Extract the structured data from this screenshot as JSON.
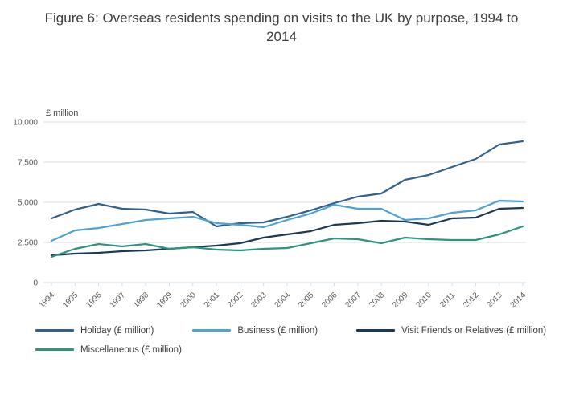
{
  "title": "Figure 6: Overseas residents spending on visits to the UK by purpose, 1994 to 2014",
  "chart_data": {
    "type": "line",
    "x": [
      1994,
      1995,
      1996,
      1997,
      1998,
      1999,
      2000,
      2001,
      2002,
      2003,
      2004,
      2005,
      2006,
      2007,
      2008,
      2009,
      2010,
      2011,
      2012,
      2013,
      2014
    ],
    "ylabel": "£ million",
    "xlabel": "",
    "ylim": [
      0,
      10000
    ],
    "yticks": [
      0,
      2500,
      5000,
      7500,
      10000
    ],
    "ytick_labels": [
      "0",
      "2,500",
      "5,000",
      "7,500",
      "10,000"
    ],
    "grid": true,
    "legend_position": "bottom",
    "series": [
      {
        "name": "Holiday (£ million)",
        "color": "#33618d",
        "values": [
          4000,
          4550,
          4900,
          4600,
          4550,
          4300,
          4400,
          3500,
          3700,
          3750,
          4100,
          4500,
          4950,
          5350,
          5550,
          6400,
          6700,
          7200,
          7700,
          8600,
          8800
        ]
      },
      {
        "name": "Business (£ million)",
        "color": "#4fa3d1",
        "values": [
          2600,
          3250,
          3400,
          3650,
          3900,
          4000,
          4100,
          3700,
          3600,
          3450,
          3900,
          4300,
          4850,
          4600,
          4600,
          3900,
          4000,
          4350,
          4500,
          5100,
          5050
        ]
      },
      {
        "name": "Visit Friends or Relatives (£ million)",
        "color": "#1b3a55",
        "values": [
          1700,
          1800,
          1850,
          1950,
          2000,
          2100,
          2200,
          2300,
          2450,
          2800,
          3000,
          3200,
          3600,
          3700,
          3850,
          3800,
          3600,
          4000,
          4050,
          4600,
          4650
        ]
      },
      {
        "name": "Miscellaneous (£ million)",
        "color": "#2e9380",
        "values": [
          1600,
          2100,
          2400,
          2250,
          2400,
          2100,
          2200,
          2050,
          2000,
          2100,
          2150,
          2450,
          2750,
          2700,
          2450,
          2800,
          2700,
          2650,
          2650,
          3000,
          3500
        ]
      }
    ]
  }
}
